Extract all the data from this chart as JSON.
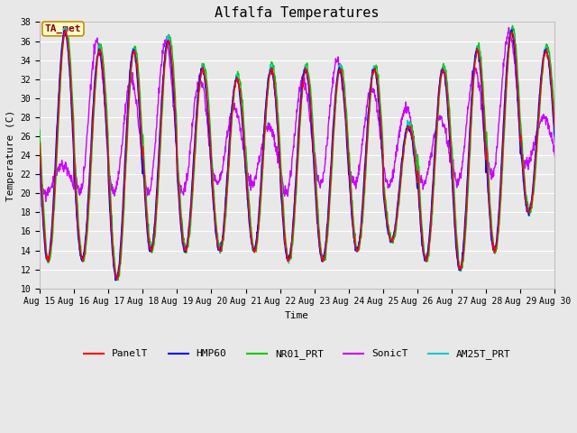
{
  "title": "Alfalfa Temperatures",
  "xlabel": "Time",
  "ylabel": "Temperature (C)",
  "ylim": [
    10,
    38
  ],
  "fig_bg_color": "#e8e8e8",
  "plot_bg_color": "#e8e8e8",
  "grid_color": "#ffffff",
  "series": {
    "PanelT": {
      "color": "#ff0000",
      "lw": 1.0,
      "zorder": 5
    },
    "HMP60": {
      "color": "#0000ff",
      "lw": 1.0,
      "zorder": 4
    },
    "NR01_PRT": {
      "color": "#00cc00",
      "lw": 1.0,
      "zorder": 3
    },
    "SonicT": {
      "color": "#cc00ff",
      "lw": 1.0,
      "zorder": 2
    },
    "AM25T_PRT": {
      "color": "#00cccc",
      "lw": 1.0,
      "zorder": 1
    }
  },
  "xtick_labels": [
    "Aug 15",
    "Aug 16",
    "Aug 17",
    "Aug 18",
    "Aug 19",
    "Aug 20",
    "Aug 21",
    "Aug 22",
    "Aug 23",
    "Aug 24",
    "Aug 25",
    "Aug 26",
    "Aug 27",
    "Aug 28",
    "Aug 29",
    "Aug 30"
  ],
  "ytick_values": [
    10,
    12,
    14,
    16,
    18,
    20,
    22,
    24,
    26,
    28,
    30,
    32,
    34,
    36,
    38
  ],
  "annotation_text": "TA_met",
  "annotation_bg": "#ffffcc",
  "annotation_border": "#cc8800",
  "title_fontsize": 11,
  "tick_fontsize": 7,
  "label_fontsize": 8,
  "legend_fontsize": 8
}
